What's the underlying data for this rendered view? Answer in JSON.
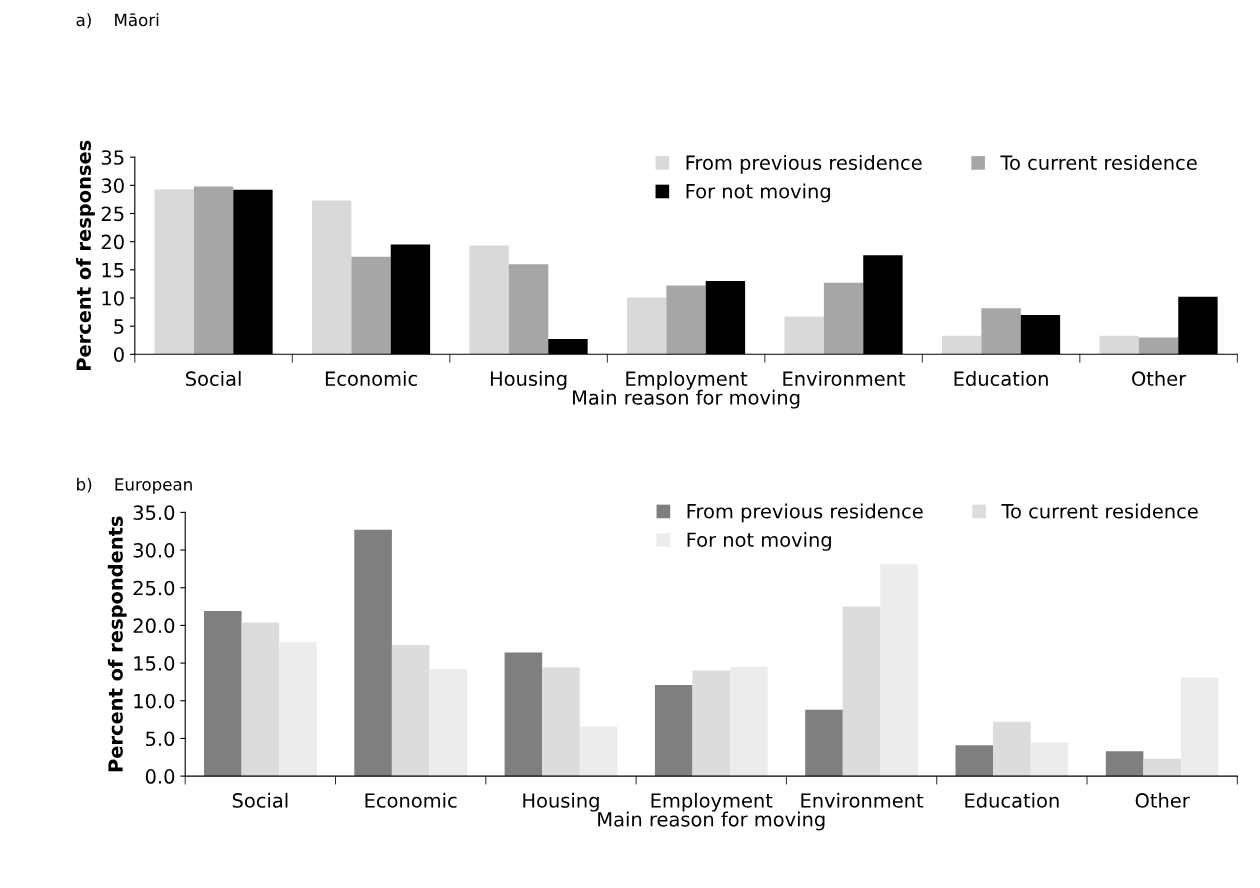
{
  "chart_data": [
    {
      "type": "bar",
      "title": "a)    Māori",
      "xlabel": "Main reason for moving",
      "ylabel": "Percent of responses",
      "categories": [
        "Social",
        "Economic",
        "Housing",
        "Employment",
        "Environment",
        "Education",
        "Other"
      ],
      "series": [
        {
          "name": "From previous residence",
          "color": "#d9d9d9",
          "values": [
            29.3,
            27.3,
            19.3,
            10.1,
            6.7,
            3.3,
            3.3
          ]
        },
        {
          "name": "To current residence",
          "color": "#a6a6a6",
          "values": [
            29.8,
            17.3,
            16.0,
            12.2,
            12.7,
            8.2,
            3.0
          ]
        },
        {
          "name": "For not moving",
          "color": "#000000",
          "values": [
            29.2,
            19.5,
            2.7,
            13.0,
            17.6,
            7.0,
            10.2
          ]
        }
      ],
      "ylim": [
        0,
        35
      ],
      "yticks": [
        0,
        5,
        10,
        15,
        20,
        25,
        30,
        35
      ],
      "grid": false,
      "legend": "top right"
    },
    {
      "type": "bar",
      "title": "b)    European",
      "xlabel": "Main reason for moving",
      "ylabel": "Percent of respondents",
      "categories": [
        "Social",
        "Economic",
        "Housing",
        "Employment",
        "Environment",
        "Education",
        "Other"
      ],
      "series": [
        {
          "name": "From previous residence",
          "color": "#7f7f7f",
          "values": [
            21.9,
            32.7,
            16.4,
            12.1,
            8.8,
            4.1,
            3.3
          ]
        },
        {
          "name": "To current residence",
          "color": "#dcdcdc",
          "values": [
            20.4,
            17.4,
            14.4,
            14.0,
            22.5,
            7.2,
            2.3
          ]
        },
        {
          "name": "For not moving",
          "color": "#ececec",
          "values": [
            17.8,
            14.2,
            6.6,
            14.5,
            28.1,
            4.5,
            13.1
          ]
        }
      ],
      "ylim": [
        0,
        35
      ],
      "yticks": [
        {
          "value": 0,
          "label": "0.0"
        },
        {
          "value": 5,
          "label": "5.0"
        },
        {
          "value": 10,
          "label": "10.0"
        },
        {
          "value": 15,
          "label": "15.0"
        },
        {
          "value": 20,
          "label": "20.0"
        },
        {
          "value": 25,
          "label": "25.0"
        },
        {
          "value": 30,
          "label": "30.0"
        },
        {
          "value": 35,
          "label": "35.0"
        }
      ],
      "grid": false,
      "legend": "top right"
    }
  ]
}
